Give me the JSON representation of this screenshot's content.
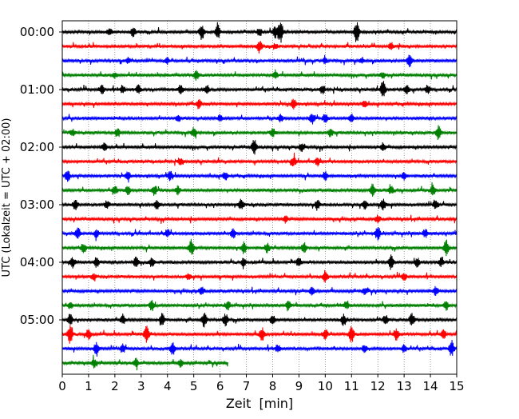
{
  "chart_data": {
    "type": "line",
    "title": "",
    "xlabel": "Zeit  [min]",
    "ylabel": "UTC (Lokalzeit = UTC + 02:00)",
    "xlim": [
      0,
      15
    ],
    "x_ticks": [
      "0",
      "1",
      "2",
      "3",
      "4",
      "5",
      "6",
      "7",
      "8",
      "9",
      "10",
      "11",
      "12",
      "13",
      "14",
      "15"
    ],
    "y_tick_labels": [
      "00:00",
      "01:00",
      "02:00",
      "03:00",
      "04:00",
      "05:00"
    ],
    "minutes_per_trace": 15,
    "grid": "vertical dotted at each minute",
    "trace_colors": [
      "#000000",
      "#ff0000",
      "#0000ff",
      "#008000"
    ],
    "traces": [
      {
        "start": "00:00",
        "end_min": 15,
        "color": "#000000",
        "events": [
          [
            1.8,
            0.25
          ],
          [
            2.7,
            0.35
          ],
          [
            5.3,
            0.55
          ],
          [
            5.9,
            0.5
          ],
          [
            7.5,
            0.3
          ],
          [
            8.1,
            0.4
          ],
          [
            8.3,
            0.75
          ],
          [
            11.2,
            0.75
          ]
        ]
      },
      {
        "start": "00:15",
        "end_min": 15,
        "color": "#ff0000",
        "events": [
          [
            7.5,
            0.45
          ],
          [
            8.1,
            0.2
          ],
          [
            12.5,
            0.25
          ]
        ]
      },
      {
        "start": "00:30",
        "end_min": 15,
        "color": "#0000ff",
        "events": [
          [
            2.5,
            0.2
          ],
          [
            4.0,
            0.2
          ],
          [
            10.0,
            0.2
          ],
          [
            11.4,
            0.2
          ],
          [
            13.2,
            0.55
          ]
        ]
      },
      {
        "start": "00:45",
        "end_min": 15,
        "color": "#008000",
        "events": [
          [
            2.0,
            0.2
          ],
          [
            5.1,
            0.35
          ],
          [
            8.1,
            0.25
          ],
          [
            12.2,
            0.2
          ]
        ]
      },
      {
        "start": "01:00",
        "end_min": 15,
        "color": "#000000",
        "events": [
          [
            1.5,
            0.3
          ],
          [
            2.3,
            0.3
          ],
          [
            2.9,
            0.3
          ],
          [
            4.5,
            0.3
          ],
          [
            5.5,
            0.3
          ],
          [
            9.9,
            0.3
          ],
          [
            12.2,
            0.65
          ],
          [
            13.1,
            0.3
          ],
          [
            13.9,
            0.3
          ]
        ]
      },
      {
        "start": "01:15",
        "end_min": 15,
        "color": "#ff0000",
        "events": [
          [
            5.2,
            0.35
          ],
          [
            8.8,
            0.35
          ],
          [
            11.5,
            0.25
          ]
        ]
      },
      {
        "start": "01:30",
        "end_min": 15,
        "color": "#0000ff",
        "events": [
          [
            4.4,
            0.25
          ],
          [
            6.0,
            0.25
          ],
          [
            8.3,
            0.25
          ],
          [
            9.5,
            0.4
          ],
          [
            10.0,
            0.3
          ],
          [
            11.0,
            0.3
          ]
        ]
      },
      {
        "start": "01:45",
        "end_min": 15,
        "color": "#008000",
        "events": [
          [
            0.4,
            0.25
          ],
          [
            2.1,
            0.3
          ],
          [
            5.0,
            0.3
          ],
          [
            8.0,
            0.3
          ],
          [
            10.2,
            0.3
          ],
          [
            14.3,
            0.45
          ]
        ]
      },
      {
        "start": "02:00",
        "end_min": 15,
        "color": "#000000",
        "events": [
          [
            1.6,
            0.25
          ],
          [
            7.3,
            0.55
          ],
          [
            9.1,
            0.3
          ],
          [
            12.2,
            0.3
          ]
        ]
      },
      {
        "start": "02:15",
        "end_min": 15,
        "color": "#ff0000",
        "events": [
          [
            4.5,
            0.2
          ],
          [
            8.8,
            0.35
          ],
          [
            9.7,
            0.3
          ]
        ]
      },
      {
        "start": "02:30",
        "end_min": 15,
        "color": "#0000ff",
        "events": [
          [
            0.2,
            0.4
          ],
          [
            2.5,
            0.3
          ],
          [
            4.1,
            0.35
          ],
          [
            6.2,
            0.3
          ],
          [
            10.0,
            0.3
          ],
          [
            13.0,
            0.25
          ]
        ]
      },
      {
        "start": "02:45",
        "end_min": 15,
        "color": "#008000",
        "events": [
          [
            2.0,
            0.3
          ],
          [
            2.5,
            0.3
          ],
          [
            3.5,
            0.35
          ],
          [
            4.4,
            0.3
          ],
          [
            11.8,
            0.45
          ],
          [
            12.5,
            0.3
          ],
          [
            14.1,
            0.35
          ]
        ]
      },
      {
        "start": "03:00",
        "end_min": 15,
        "color": "#000000",
        "events": [
          [
            0.5,
            0.35
          ],
          [
            1.7,
            0.3
          ],
          [
            3.6,
            0.3
          ],
          [
            6.8,
            0.35
          ],
          [
            9.7,
            0.35
          ],
          [
            11.5,
            0.3
          ],
          [
            12.2,
            0.35
          ],
          [
            14.2,
            0.35
          ]
        ]
      },
      {
        "start": "03:15",
        "end_min": 15,
        "color": "#ff0000",
        "events": [
          [
            8.5,
            0.25
          ],
          [
            12.0,
            0.25
          ]
        ]
      },
      {
        "start": "03:30",
        "end_min": 15,
        "color": "#0000ff",
        "events": [
          [
            0.6,
            0.4
          ],
          [
            1.3,
            0.3
          ],
          [
            4.0,
            0.3
          ],
          [
            6.5,
            0.35
          ],
          [
            12.0,
            0.5
          ],
          [
            13.8,
            0.3
          ]
        ]
      },
      {
        "start": "03:45",
        "end_min": 15,
        "color": "#008000",
        "events": [
          [
            0.8,
            0.3
          ],
          [
            4.9,
            0.55
          ],
          [
            6.9,
            0.4
          ],
          [
            7.8,
            0.35
          ],
          [
            9.2,
            0.35
          ],
          [
            14.6,
            0.55
          ]
        ]
      },
      {
        "start": "04:00",
        "end_min": 15,
        "color": "#000000",
        "events": [
          [
            0.4,
            0.35
          ],
          [
            1.3,
            0.35
          ],
          [
            2.8,
            0.35
          ],
          [
            3.4,
            0.35
          ],
          [
            6.9,
            0.3
          ],
          [
            9.0,
            0.3
          ],
          [
            12.5,
            0.5
          ],
          [
            13.5,
            0.3
          ],
          [
            14.4,
            0.3
          ]
        ]
      },
      {
        "start": "04:15",
        "end_min": 15,
        "color": "#ff0000",
        "events": [
          [
            1.2,
            0.2
          ],
          [
            4.8,
            0.2
          ],
          [
            10.0,
            0.4
          ],
          [
            13.0,
            0.25
          ]
        ]
      },
      {
        "start": "04:30",
        "end_min": 15,
        "color": "#0000ff",
        "events": [
          [
            5.3,
            0.25
          ],
          [
            9.5,
            0.25
          ],
          [
            11.5,
            0.25
          ],
          [
            14.2,
            0.3
          ]
        ]
      },
      {
        "start": "04:45",
        "end_min": 15,
        "color": "#008000",
        "events": [
          [
            0.3,
            0.25
          ],
          [
            3.4,
            0.4
          ],
          [
            6.3,
            0.3
          ],
          [
            8.6,
            0.3
          ],
          [
            10.8,
            0.25
          ],
          [
            14.6,
            0.3
          ]
        ]
      },
      {
        "start": "05:00",
        "end_min": 15,
        "color": "#000000",
        "events": [
          [
            0.3,
            0.4
          ],
          [
            2.3,
            0.35
          ],
          [
            3.8,
            0.4
          ],
          [
            5.4,
            0.5
          ],
          [
            6.2,
            0.5
          ],
          [
            8.0,
            0.35
          ],
          [
            10.7,
            0.4
          ],
          [
            12.3,
            0.35
          ],
          [
            13.3,
            0.45
          ]
        ]
      },
      {
        "start": "05:15",
        "end_min": 15,
        "color": "#ff0000",
        "events": [
          [
            0.3,
            0.65
          ],
          [
            1.0,
            0.45
          ],
          [
            3.2,
            0.6
          ],
          [
            7.6,
            0.45
          ],
          [
            10.0,
            0.35
          ],
          [
            11.0,
            0.65
          ],
          [
            12.7,
            0.4
          ],
          [
            14.5,
            0.3
          ]
        ]
      },
      {
        "start": "05:30",
        "end_min": 15,
        "color": "#0000ff",
        "events": [
          [
            1.3,
            0.5
          ],
          [
            2.3,
            0.3
          ],
          [
            4.2,
            0.45
          ],
          [
            8.2,
            0.3
          ],
          [
            11.5,
            0.3
          ],
          [
            13.0,
            0.3
          ],
          [
            14.8,
            0.55
          ]
        ]
      },
      {
        "start": "05:45",
        "end_min": 6.3,
        "color": "#008000",
        "events": [
          [
            1.2,
            0.3
          ],
          [
            2.8,
            0.3
          ],
          [
            4.5,
            0.3
          ]
        ]
      }
    ]
  }
}
